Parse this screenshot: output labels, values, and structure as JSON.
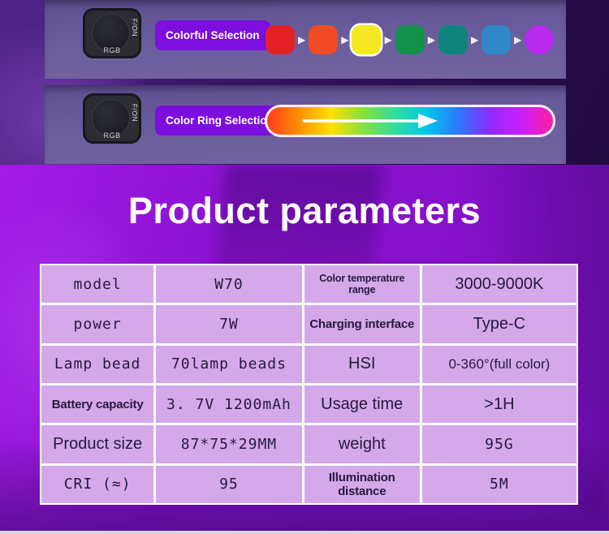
{
  "banner_colorful": {
    "device": {
      "side_label": "F/ON",
      "bottom_label": "RGB"
    },
    "label": "Colorful Selection",
    "arrow_glyph": "▶",
    "swatches": [
      "#e32127",
      "#ef4b23",
      "#f3ea22",
      "#13904a",
      "#0e857c",
      "#2f86c8",
      "#bb2af0"
    ],
    "highlighted_index": 2
  },
  "banner_ring": {
    "device": {
      "side_label": "F/ON",
      "bottom_label": "RGB"
    },
    "label": "Color Ring Selection",
    "gradient_colors": [
      "#ff3b1f",
      "#ff9100",
      "#ffe000",
      "#8ae03c",
      "#2fe09a",
      "#00c8e8",
      "#2b7bff",
      "#8d2bff",
      "#c81fff",
      "#ff1f9e"
    ]
  },
  "section_title": "Product parameters",
  "table": {
    "rows": [
      [
        {
          "text": "model",
          "style": "mono"
        },
        {
          "text": "W70",
          "style": "mono"
        },
        {
          "text": "Color temperature range",
          "style": "lbl-sm"
        },
        {
          "text": "3000-9000K",
          "style": "sans"
        }
      ],
      [
        {
          "text": "power",
          "style": "mono"
        },
        {
          "text": "7W",
          "style": "mono"
        },
        {
          "text": "Charging interface",
          "style": "lbl"
        },
        {
          "text": "Type-C",
          "style": "sans"
        }
      ],
      [
        {
          "text": "Lamp bead",
          "style": "mono"
        },
        {
          "text": "70lamp beads",
          "style": "mono"
        },
        {
          "text": "HSI",
          "style": "sans"
        },
        {
          "text": "0-360°(full color)",
          "style": "sans-sm"
        }
      ],
      [
        {
          "text": "Battery capacity",
          "style": "lbl"
        },
        {
          "text": "3. 7V 1200mAh",
          "style": "mono"
        },
        {
          "text": "Usage time",
          "style": "sans"
        },
        {
          "text": ">1H",
          "style": "sans"
        }
      ],
      [
        {
          "text": "Product size",
          "style": "sans"
        },
        {
          "text": "87*75*29MM",
          "style": "mono"
        },
        {
          "text": "weight",
          "style": "sans"
        },
        {
          "text": "95G",
          "style": "mono"
        }
      ],
      [
        {
          "text": "CRI (≈)",
          "style": "mono"
        },
        {
          "text": "95",
          "style": "mono"
        },
        {
          "text": "Illumination distance",
          "style": "lbl"
        },
        {
          "text": "5M",
          "style": "mono"
        }
      ]
    ]
  },
  "colors": {
    "pill_purple": "#7c0ede",
    "cell_bg": "#d5a9e9",
    "grid_line": "#fdfdfd",
    "table_text": "#251a3d",
    "title_color": "#ffffff",
    "main_purple": "#8c12d2",
    "banner_bg": "#6b5e9d",
    "top_dark_purple": "#2a0d4e"
  }
}
